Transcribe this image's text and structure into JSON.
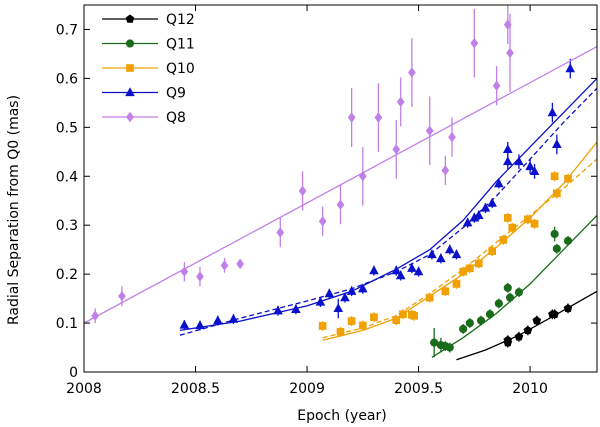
{
  "chart_data": {
    "type": "scatter",
    "title": "",
    "xlabel": "Epoch (year)",
    "ylabel": "Radial Separation from Q0 (mas)",
    "xlim": [
      2008.0,
      2010.3
    ],
    "ylim": [
      0.0,
      0.75
    ],
    "x_ticks": [
      2008,
      2008.5,
      2009,
      2009.5,
      2010
    ],
    "x_tick_labels": [
      "2008",
      "2008.5",
      "2009",
      "2009.5",
      "2010"
    ],
    "y_ticks": [
      0,
      0.1,
      0.2,
      0.3,
      0.4,
      0.5,
      0.6,
      0.7
    ],
    "y_tick_labels": [
      "0",
      "0.1",
      "0.2",
      "0.3",
      "0.4",
      "0.5",
      "0.6",
      "0.7"
    ],
    "grid": false,
    "legend_position": "top-left",
    "series": [
      {
        "name": "Q12",
        "color": "#000000",
        "marker": "pentagon",
        "points": [
          [
            2009.9,
            0.065,
            0.01
          ],
          [
            2009.9,
            0.06,
            0.01
          ],
          [
            2009.95,
            0.072,
            0.01
          ],
          [
            2009.99,
            0.085,
            0.01
          ],
          [
            2010.03,
            0.105,
            0.01
          ],
          [
            2010.1,
            0.118,
            0.01
          ],
          [
            2010.11,
            0.118,
            0.01
          ],
          [
            2010.17,
            0.13,
            0.01
          ]
        ],
        "fit_solid": [
          [
            2009.67,
            0.025
          ],
          [
            2009.8,
            0.045
          ],
          [
            2009.95,
            0.075
          ],
          [
            2010.1,
            0.113
          ],
          [
            2010.3,
            0.165
          ]
        ],
        "fit_dashed": []
      },
      {
        "name": "Q11",
        "color": "#1a6b1a",
        "marker": "circle",
        "points": [
          [
            2009.57,
            0.06,
            0.03
          ],
          [
            2009.6,
            0.055,
            0.015
          ],
          [
            2009.62,
            0.053,
            0.01
          ],
          [
            2009.64,
            0.05,
            0.01
          ],
          [
            2009.7,
            0.088,
            0.01
          ],
          [
            2009.73,
            0.1,
            0.01
          ],
          [
            2009.78,
            0.105,
            0.01
          ],
          [
            2009.82,
            0.118,
            0.01
          ],
          [
            2009.86,
            0.14,
            0.01
          ],
          [
            2009.9,
            0.172,
            0.01
          ],
          [
            2009.91,
            0.152,
            0.01
          ],
          [
            2009.95,
            0.163,
            0.01
          ],
          [
            2010.11,
            0.282,
            0.015
          ],
          [
            2010.12,
            0.252,
            0.01
          ],
          [
            2010.17,
            0.268,
            0.01
          ]
        ],
        "fit_solid": [
          [
            2009.56,
            0.03
          ],
          [
            2009.7,
            0.07
          ],
          [
            2009.85,
            0.12
          ],
          [
            2010.0,
            0.18
          ],
          [
            2010.15,
            0.25
          ],
          [
            2010.3,
            0.32
          ]
        ],
        "fit_dashed": []
      },
      {
        "name": "Q10",
        "color": "#f0a000",
        "marker": "square",
        "points": [
          [
            2009.07,
            0.094,
            0.01
          ],
          [
            2009.15,
            0.082,
            0.01
          ],
          [
            2009.2,
            0.104,
            0.01
          ],
          [
            2009.25,
            0.095,
            0.01
          ],
          [
            2009.3,
            0.112,
            0.01
          ],
          [
            2009.4,
            0.106,
            0.01
          ],
          [
            2009.43,
            0.118,
            0.01
          ],
          [
            2009.47,
            0.117,
            0.01
          ],
          [
            2009.48,
            0.115,
            0.01
          ],
          [
            2009.55,
            0.152,
            0.01
          ],
          [
            2009.62,
            0.165,
            0.01
          ],
          [
            2009.67,
            0.18,
            0.01
          ],
          [
            2009.7,
            0.205,
            0.01
          ],
          [
            2009.73,
            0.212,
            0.01
          ],
          [
            2009.77,
            0.222,
            0.01
          ],
          [
            2009.83,
            0.247,
            0.01
          ],
          [
            2009.88,
            0.27,
            0.01
          ],
          [
            2009.9,
            0.315,
            0.01
          ],
          [
            2009.92,
            0.295,
            0.01
          ],
          [
            2009.99,
            0.312,
            0.01
          ],
          [
            2010.02,
            0.303,
            0.01
          ],
          [
            2010.11,
            0.4,
            0.01
          ],
          [
            2010.12,
            0.365,
            0.01
          ],
          [
            2010.17,
            0.395,
            0.01
          ]
        ],
        "fit_solid": [
          [
            2009.07,
            0.065
          ],
          [
            2009.25,
            0.085
          ],
          [
            2009.4,
            0.11
          ],
          [
            2009.55,
            0.155
          ],
          [
            2009.7,
            0.2
          ],
          [
            2009.85,
            0.255
          ],
          [
            2010.0,
            0.315
          ],
          [
            2010.15,
            0.385
          ],
          [
            2010.3,
            0.47
          ]
        ],
        "fit_dashed": [
          [
            2009.07,
            0.07
          ],
          [
            2009.25,
            0.09
          ],
          [
            2009.4,
            0.115
          ],
          [
            2009.55,
            0.16
          ],
          [
            2009.7,
            0.21
          ],
          [
            2009.85,
            0.265
          ],
          [
            2010.0,
            0.32
          ],
          [
            2010.15,
            0.375
          ],
          [
            2010.3,
            0.435
          ]
        ]
      },
      {
        "name": "Q9",
        "color": "#0a10cc",
        "marker": "triangle",
        "points": [
          [
            2008.45,
            0.096,
            0.01
          ],
          [
            2008.52,
            0.095,
            0.01
          ],
          [
            2008.6,
            0.105,
            0.01
          ],
          [
            2008.67,
            0.108,
            0.01
          ],
          [
            2008.87,
            0.125,
            0.01
          ],
          [
            2008.95,
            0.128,
            0.01
          ],
          [
            2009.06,
            0.143,
            0.01
          ],
          [
            2009.1,
            0.16,
            0.01
          ],
          [
            2009.14,
            0.13,
            0.02
          ],
          [
            2009.17,
            0.152,
            0.01
          ],
          [
            2009.2,
            0.165,
            0.01
          ],
          [
            2009.25,
            0.17,
            0.01
          ],
          [
            2009.3,
            0.207,
            0.01
          ],
          [
            2009.4,
            0.207,
            0.01
          ],
          [
            2009.42,
            0.197,
            0.01
          ],
          [
            2009.47,
            0.212,
            0.01
          ],
          [
            2009.5,
            0.205,
            0.01
          ],
          [
            2009.56,
            0.24,
            0.01
          ],
          [
            2009.6,
            0.232,
            0.01
          ],
          [
            2009.64,
            0.25,
            0.01
          ],
          [
            2009.67,
            0.24,
            0.01
          ],
          [
            2009.72,
            0.305,
            0.01
          ],
          [
            2009.75,
            0.315,
            0.01
          ],
          [
            2009.77,
            0.32,
            0.01
          ],
          [
            2009.8,
            0.335,
            0.01
          ],
          [
            2009.83,
            0.345,
            0.01
          ],
          [
            2009.86,
            0.385,
            0.01
          ],
          [
            2009.9,
            0.455,
            0.015
          ],
          [
            2009.9,
            0.43,
            0.015
          ],
          [
            2009.95,
            0.43,
            0.015
          ],
          [
            2010.0,
            0.42,
            0.015
          ],
          [
            2010.02,
            0.41,
            0.015
          ],
          [
            2010.1,
            0.53,
            0.02
          ],
          [
            2010.12,
            0.465,
            0.02
          ],
          [
            2010.18,
            0.62,
            0.02
          ]
        ],
        "fit_solid": [
          [
            2008.43,
            0.085
          ],
          [
            2008.7,
            0.104
          ],
          [
            2009.0,
            0.135
          ],
          [
            2009.2,
            0.165
          ],
          [
            2009.4,
            0.21
          ],
          [
            2009.55,
            0.25
          ],
          [
            2009.7,
            0.31
          ],
          [
            2009.85,
            0.39
          ],
          [
            2010.0,
            0.46
          ],
          [
            2010.15,
            0.53
          ],
          [
            2010.3,
            0.6
          ]
        ],
        "fit_dashed": [
          [
            2008.43,
            0.075
          ],
          [
            2008.7,
            0.11
          ],
          [
            2009.0,
            0.145
          ],
          [
            2009.2,
            0.17
          ],
          [
            2009.4,
            0.205
          ],
          [
            2009.55,
            0.24
          ],
          [
            2009.7,
            0.295
          ],
          [
            2009.85,
            0.36
          ],
          [
            2010.0,
            0.435
          ],
          [
            2010.15,
            0.51
          ],
          [
            2010.3,
            0.58
          ]
        ]
      },
      {
        "name": "Q8",
        "color": "#c080e8",
        "marker": "diamond",
        "points": [
          [
            2008.05,
            0.115,
            0.015
          ],
          [
            2008.17,
            0.155,
            0.02
          ],
          [
            2008.45,
            0.205,
            0.02
          ],
          [
            2008.52,
            0.195,
            0.02
          ],
          [
            2008.63,
            0.218,
            0.015
          ],
          [
            2008.7,
            0.221,
            0.01
          ],
          [
            2008.88,
            0.285,
            0.03
          ],
          [
            2008.98,
            0.37,
            0.04
          ],
          [
            2009.07,
            0.308,
            0.03
          ],
          [
            2009.15,
            0.342,
            0.04
          ],
          [
            2009.2,
            0.52,
            0.06
          ],
          [
            2009.25,
            0.4,
            0.06
          ],
          [
            2009.32,
            0.52,
            0.07
          ],
          [
            2009.4,
            0.455,
            0.06
          ],
          [
            2009.42,
            0.552,
            0.05
          ],
          [
            2009.47,
            0.612,
            0.07
          ],
          [
            2009.55,
            0.493,
            0.07
          ],
          [
            2009.62,
            0.412,
            0.03
          ],
          [
            2009.65,
            0.48,
            0.04
          ],
          [
            2009.75,
            0.672,
            0.07
          ],
          [
            2009.85,
            0.585,
            0.04
          ],
          [
            2009.9,
            0.71,
            0.04
          ],
          [
            2009.91,
            0.652,
            0.08
          ]
        ],
        "fit_solid": [
          [
            2008.0,
            0.1
          ],
          [
            2010.3,
            0.665
          ]
        ],
        "fit_dashed": []
      }
    ]
  }
}
